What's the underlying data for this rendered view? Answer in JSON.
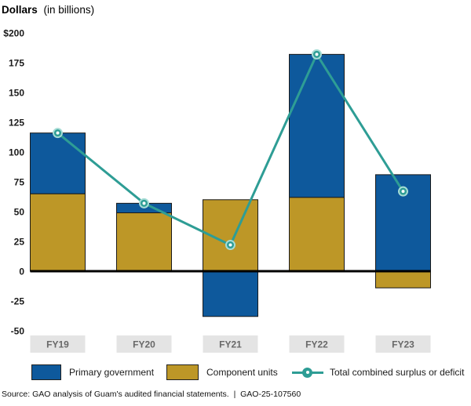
{
  "header": {
    "title_bold": "Dollars",
    "title_rest": "(in billions)"
  },
  "chart_data": {
    "type": "bar",
    "subtype": "stacked-bars-with-line-overlay",
    "title": "Dollars (in billions)",
    "categories": [
      "FY19",
      "FY20",
      "FY21",
      "FY22",
      "FY23"
    ],
    "series": [
      {
        "name": "Component units",
        "color": "#bd9727",
        "values": [
          65,
          49,
          60,
          62,
          -14
        ]
      },
      {
        "name": "Primary government",
        "color": "#0e599c",
        "values": [
          51,
          8,
          -38,
          120,
          81
        ]
      }
    ],
    "line": {
      "name": "Total combined surplus or deficit",
      "color": "#2e9d95",
      "marker_ring_color": "#a6dcd5",
      "marker_dot_color": "#ffffff",
      "values": [
        116,
        57,
        22,
        182,
        67
      ]
    },
    "yticks": [
      {
        "label": "$200",
        "value": 200
      },
      {
        "label": "175",
        "value": 175
      },
      {
        "label": "150",
        "value": 150
      },
      {
        "label": "125",
        "value": 125
      },
      {
        "label": "100",
        "value": 100
      },
      {
        "label": "75",
        "value": 75
      },
      {
        "label": "50",
        "value": 50
      },
      {
        "label": "25",
        "value": 25
      },
      {
        "label": "0",
        "value": 0
      },
      {
        "label": "-25",
        "value": -25
      },
      {
        "label": "-50",
        "value": -50
      }
    ],
    "ylim": [
      -50,
      200
    ],
    "grid": false,
    "legend_position": "bottom"
  },
  "colors": {
    "zero_line": "#000000",
    "bar_border": "#1a1a1a",
    "axis_box_bg": "#e4e4e4",
    "axis_box_text": "#686868",
    "text_dark": "#1a1a1a"
  },
  "legend": {
    "items": [
      {
        "label": "Primary government"
      },
      {
        "label": "Component units"
      },
      {
        "label": "Total combined surplus or deficit"
      }
    ]
  },
  "footer": {
    "source": "Source: GAO analysis of Guam's audited financial statements.  |  GAO-25-107560"
  }
}
